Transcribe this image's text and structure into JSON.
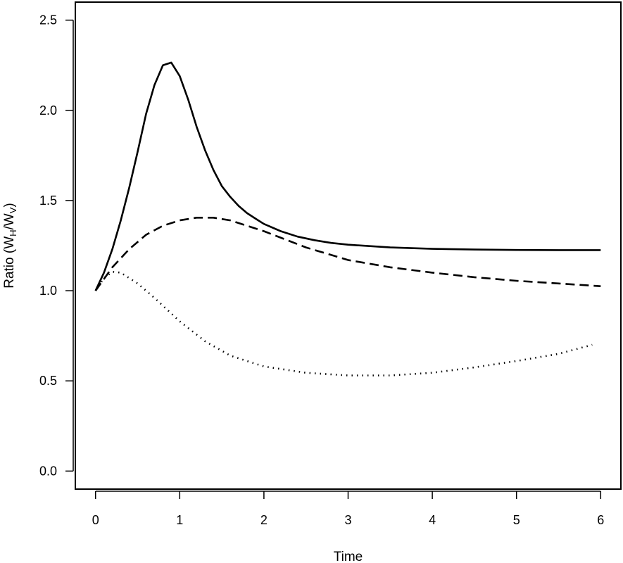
{
  "chart_data": {
    "type": "line",
    "title": "",
    "xlabel": "Time",
    "ylabel": {
      "prefix": "Ratio (W",
      "sub1": "H",
      "mid": "/W",
      "sub2": "V",
      "suffix": ")"
    },
    "xlim": [
      -0.24,
      6.24
    ],
    "ylim": [
      -0.1,
      2.6
    ],
    "x_ticks": [
      0,
      1,
      2,
      3,
      4,
      5,
      6
    ],
    "x_tick_labels": [
      "0",
      "1",
      "2",
      "3",
      "4",
      "5",
      "6"
    ],
    "y_ticks": [
      0.0,
      0.5,
      1.0,
      1.5,
      2.0,
      2.5
    ],
    "y_tick_labels": [
      "0.0",
      "0.5",
      "1.0",
      "1.5",
      "2.0",
      "2.5"
    ],
    "grid": false,
    "legend": "none",
    "series": [
      {
        "style": "solid",
        "color": "#000000",
        "x": [
          0,
          0.1,
          0.2,
          0.3,
          0.4,
          0.5,
          0.6,
          0.7,
          0.8,
          0.9,
          1.0,
          1.1,
          1.2,
          1.3,
          1.4,
          1.5,
          1.6,
          1.7,
          1.8,
          1.9,
          2.0,
          2.2,
          2.4,
          2.6,
          2.8,
          3.0,
          3.5,
          4.0,
          4.5,
          5.0,
          5.5,
          6.0
        ],
        "y": [
          1.0,
          1.1,
          1.23,
          1.39,
          1.57,
          1.77,
          1.98,
          2.14,
          2.25,
          2.265,
          2.19,
          2.06,
          1.91,
          1.78,
          1.67,
          1.58,
          1.52,
          1.47,
          1.43,
          1.4,
          1.37,
          1.33,
          1.3,
          1.28,
          1.265,
          1.255,
          1.24,
          1.232,
          1.228,
          1.226,
          1.225,
          1.225
        ]
      },
      {
        "style": "dashed",
        "color": "#000000",
        "x": [
          0,
          0.2,
          0.4,
          0.6,
          0.8,
          1.0,
          1.2,
          1.4,
          1.6,
          1.8,
          2.0,
          2.5,
          3.0,
          3.5,
          4.0,
          4.5,
          5.0,
          5.5,
          6.0
        ],
        "y": [
          1.0,
          1.13,
          1.23,
          1.31,
          1.36,
          1.39,
          1.405,
          1.405,
          1.39,
          1.36,
          1.33,
          1.24,
          1.17,
          1.13,
          1.1,
          1.075,
          1.055,
          1.04,
          1.025
        ]
      },
      {
        "style": "dotted",
        "color": "#000000",
        "x": [
          0,
          0.1,
          0.2,
          0.3,
          0.5,
          0.7,
          1.0,
          1.3,
          1.6,
          2.0,
          2.5,
          3.0,
          3.5,
          4.0,
          4.5,
          5.0,
          5.5,
          5.9
        ],
        "y": [
          1.0,
          1.07,
          1.105,
          1.1,
          1.04,
          0.96,
          0.83,
          0.72,
          0.64,
          0.58,
          0.545,
          0.53,
          0.53,
          0.545,
          0.575,
          0.61,
          0.65,
          0.7
        ]
      }
    ]
  }
}
